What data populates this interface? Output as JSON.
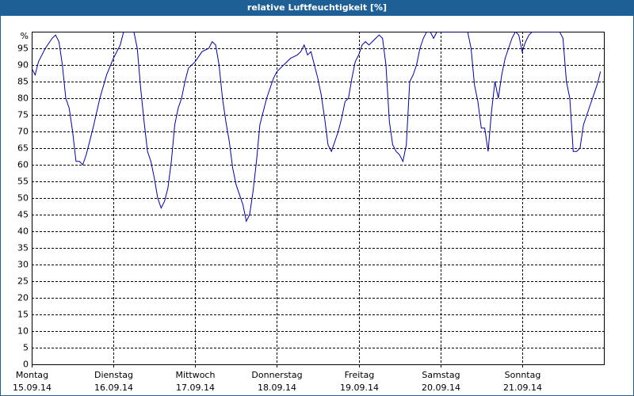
{
  "chart_data": {
    "type": "line",
    "title": "relative Luftfeuchtigkeit [%]",
    "y_unit": "%",
    "xlim": [
      0,
      168
    ],
    "xticks": [
      {
        "value": 0,
        "label": "Montag"
      },
      {
        "value": 24,
        "label": "Dienstag"
      },
      {
        "value": 48,
        "label": "Mittwoch"
      },
      {
        "value": 72,
        "label": "Donnerstag"
      },
      {
        "value": 96,
        "label": "Freitag"
      },
      {
        "value": 120,
        "label": "Samstag"
      },
      {
        "value": 144,
        "label": "Sonntag"
      }
    ],
    "xtick_dates": [
      "15.09.14",
      "16.09.14",
      "17.09.14",
      "18.09.14",
      "19.09.14",
      "20.09.14",
      "21.09.14"
    ],
    "ylim": [
      0,
      100
    ],
    "yticks": [
      0,
      5,
      10,
      15,
      20,
      25,
      30,
      35,
      40,
      45,
      50,
      55,
      60,
      65,
      70,
      75,
      80,
      85,
      90,
      95
    ],
    "grid": true,
    "x": [
      0,
      1,
      2,
      4,
      6,
      7,
      8,
      9,
      10,
      11,
      12,
      13,
      14,
      15,
      16,
      18,
      20,
      22,
      24,
      26,
      27,
      29,
      30,
      31,
      32,
      33,
      34,
      35,
      36,
      37,
      38,
      39,
      40,
      41,
      42,
      43,
      44,
      45,
      46,
      48,
      50,
      52,
      53,
      54,
      55,
      56,
      57,
      58,
      59,
      60,
      61,
      62,
      63,
      64,
      65,
      66,
      67,
      68,
      69,
      70,
      71,
      72,
      74,
      76,
      78,
      79,
      80,
      81,
      82,
      83,
      84,
      85,
      86,
      87,
      88,
      89,
      90,
      91,
      92,
      93,
      94,
      95,
      96,
      97,
      98,
      99,
      100,
      101,
      102,
      103,
      104,
      105,
      106,
      107,
      108,
      109,
      110,
      111,
      112,
      113,
      114,
      115,
      116,
      117,
      118,
      119,
      120,
      128,
      129,
      130,
      131,
      132,
      133,
      134,
      135,
      136,
      137,
      138,
      139,
      140,
      141,
      142,
      143,
      144,
      145,
      146,
      147,
      155,
      156,
      157,
      158,
      159,
      160,
      161,
      162,
      163,
      164,
      165,
      166,
      167
    ],
    "series": [
      {
        "name": "relative Luftfeuchtigkeit",
        "color": "#0000aa",
        "values": [
          89,
          87,
          91,
          95,
          98,
          99,
          97,
          90,
          80,
          77,
          70,
          61,
          61,
          60,
          63,
          71,
          80,
          87,
          92,
          96,
          100,
          100,
          100,
          95,
          83,
          73,
          64,
          61,
          56,
          50,
          47,
          49,
          53,
          61,
          72,
          77,
          80,
          85,
          89,
          91,
          94,
          95,
          97,
          96,
          90,
          80,
          73,
          67,
          59,
          54,
          51,
          48,
          43,
          45,
          52,
          61,
          72,
          76,
          80,
          83,
          86,
          88,
          90,
          92,
          93,
          94,
          96,
          93,
          94,
          90,
          86,
          81,
          74,
          66,
          64,
          67,
          70,
          74,
          79,
          80,
          86,
          91,
          93,
          96,
          97,
          96,
          97,
          98,
          99,
          98,
          90,
          73,
          66,
          64,
          63,
          61,
          66,
          85,
          87,
          90,
          95,
          98,
          100,
          100,
          98,
          100,
          100,
          100,
          95,
          84,
          79,
          71,
          71,
          64,
          76,
          85,
          80,
          87,
          92,
          95,
          98,
          100,
          99,
          94,
          97,
          99,
          100,
          100,
          98,
          85,
          80,
          64,
          64,
          65,
          72,
          75,
          78,
          81,
          84,
          88
        ]
      }
    ]
  }
}
